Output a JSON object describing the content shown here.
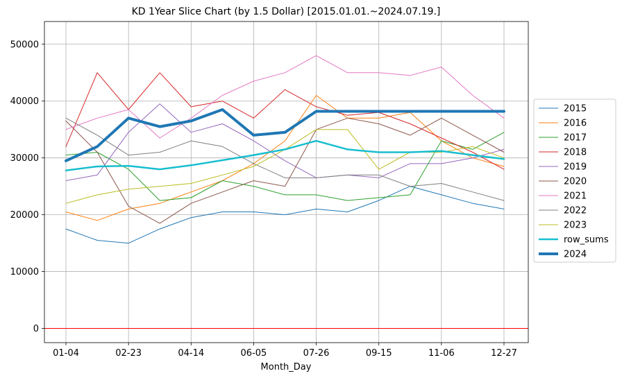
{
  "chart_data": {
    "type": "line",
    "title": "KD 1Year Slice Chart (by 1.5 Dollar) [2015.01.01.~2024.07.19.]",
    "xlabel": "Month_Day",
    "ylabel": "",
    "x_ticks": [
      "01-04",
      "02-23",
      "04-14",
      "06-05",
      "07-26",
      "09-15",
      "11-06",
      "12-27"
    ],
    "y_ticks": [
      0,
      10000,
      20000,
      30000,
      40000,
      50000
    ],
    "ylim": [
      -2500,
      54000
    ],
    "grid": true,
    "legend_position": "center-right",
    "reference_line": {
      "y": 0,
      "color": "#ff0000"
    },
    "x_points": [
      "01-04",
      "01-29",
      "02-23",
      "03-19",
      "04-14",
      "05-10",
      "06-05",
      "06-30",
      "07-26",
      "08-20",
      "09-15",
      "10-11",
      "11-06",
      "12-01",
      "12-27"
    ],
    "series": [
      {
        "name": "2015",
        "color": "#1f77b4",
        "width": 1,
        "values": [
          17500,
          15500,
          15000,
          17500,
          19500,
          20500,
          20500,
          20000,
          21000,
          20500,
          22500,
          25000,
          23500,
          22000,
          21000
        ]
      },
      {
        "name": "2016",
        "color": "#ff7f0e",
        "width": 1,
        "values": [
          20500,
          19000,
          21000,
          22000,
          24000,
          26000,
          29000,
          33000,
          41000,
          37000,
          37000,
          38000,
          33000,
          30000,
          28500
        ]
      },
      {
        "name": "2017",
        "color": "#2ca02c",
        "width": 1,
        "values": [
          30500,
          31000,
          28000,
          22500,
          23000,
          26000,
          25000,
          23500,
          23500,
          22500,
          23000,
          23500,
          33000,
          31500,
          34500
        ]
      },
      {
        "name": "2018",
        "color": "#d62728",
        "width": 1,
        "values": [
          32000,
          45000,
          38500,
          45000,
          39000,
          40000,
          37000,
          42000,
          39000,
          37500,
          38000,
          36000,
          33500,
          31000,
          28000
        ]
      },
      {
        "name": "2019",
        "color": "#9467bd",
        "width": 1,
        "values": [
          26000,
          27000,
          34500,
          39500,
          34500,
          36000,
          33000,
          29500,
          26500,
          27000,
          26500,
          29000,
          29000,
          30000,
          31500
        ]
      },
      {
        "name": "2020",
        "color": "#8c564b",
        "width": 1,
        "values": [
          36500,
          31000,
          21500,
          18500,
          22000,
          24000,
          26000,
          25000,
          35000,
          37000,
          36000,
          34000,
          37000,
          34000,
          31000
        ]
      },
      {
        "name": "2021",
        "color": "#e377c2",
        "width": 1,
        "values": [
          35000,
          37000,
          38500,
          33500,
          37000,
          41000,
          43500,
          45000,
          48000,
          45000,
          45000,
          44500,
          46000,
          41000,
          37000
        ]
      },
      {
        "name": "2022",
        "color": "#7f7f7f",
        "width": 1,
        "values": [
          37000,
          34000,
          30500,
          31000,
          33000,
          32000,
          29000,
          26500,
          26500,
          27000,
          27000,
          25000,
          25500,
          24000,
          22500
        ]
      },
      {
        "name": "2023",
        "color": "#bcbd22",
        "width": 1,
        "values": [
          22000,
          23500,
          24500,
          25000,
          25500,
          27000,
          28500,
          31500,
          35000,
          35000,
          28000,
          31000,
          31000,
          32000,
          30000
        ]
      },
      {
        "name": "row_sums",
        "color": "#17becf",
        "width": 2.5,
        "values": [
          27800,
          28500,
          28600,
          28000,
          28700,
          29600,
          30500,
          31500,
          33000,
          31500,
          31000,
          31000,
          31200,
          30500,
          29800
        ]
      },
      {
        "name": "2024",
        "color": "#1f77b4",
        "width": 4,
        "values": [
          29500,
          32000,
          37000,
          35500,
          36500,
          38500,
          34000,
          34500,
          38200,
          38200,
          38200,
          38200,
          38200,
          38200,
          38200
        ]
      }
    ]
  }
}
